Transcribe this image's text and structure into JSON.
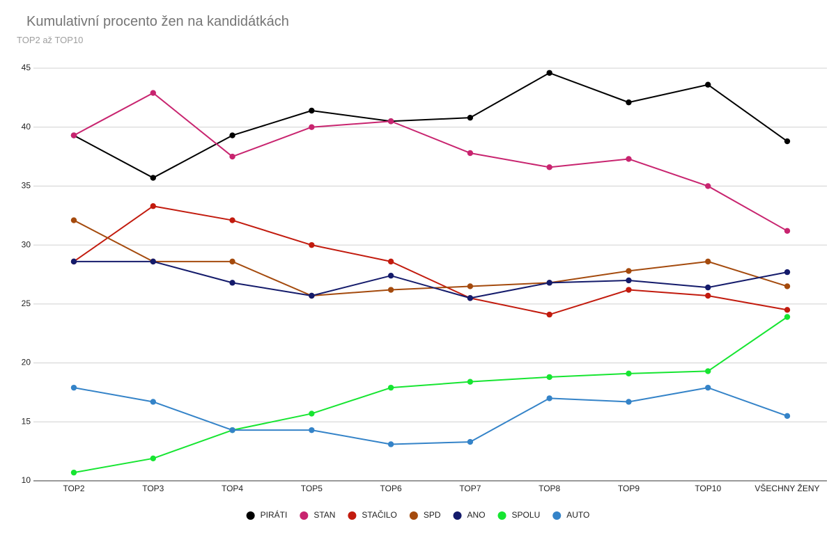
{
  "chart_data": {
    "type": "line",
    "title": "Kumulativní procento žen na kandidátkách",
    "subtitle": "TOP2 až TOP10",
    "categories": [
      "TOP2",
      "TOP3",
      "TOP4",
      "TOP5",
      "TOP6",
      "TOP7",
      "TOP8",
      "TOP9",
      "TOP10",
      "VŠECHNY ŽENY"
    ],
    "ylim": [
      10,
      45
    ],
    "yticks": [
      10,
      15,
      20,
      25,
      30,
      35,
      40,
      45
    ],
    "grid": true,
    "legend_position": "bottom",
    "series": [
      {
        "name": "PIRÁTI",
        "color": "#000000",
        "values": [
          39.3,
          35.7,
          39.3,
          41.4,
          40.5,
          40.8,
          44.6,
          42.1,
          43.6,
          38.8
        ]
      },
      {
        "name": "STAN",
        "color": "#c8246f",
        "values": [
          39.3,
          42.9,
          37.5,
          40.0,
          40.5,
          37.8,
          36.6,
          37.3,
          35.0,
          31.2
        ]
      },
      {
        "name": "STAČILO",
        "color": "#c21b0e",
        "values": [
          28.6,
          33.3,
          32.1,
          30.0,
          28.6,
          25.5,
          24.1,
          26.2,
          25.7,
          24.5
        ]
      },
      {
        "name": "SPD",
        "color": "#a44a0d",
        "values": [
          32.1,
          28.6,
          28.6,
          25.7,
          26.2,
          26.5,
          26.8,
          27.8,
          28.6,
          26.5
        ]
      },
      {
        "name": "ANO",
        "color": "#141b6b",
        "values": [
          28.6,
          28.6,
          26.8,
          25.7,
          27.4,
          25.5,
          26.8,
          27.0,
          26.4,
          27.7
        ]
      },
      {
        "name": "SPOLU",
        "color": "#16e531",
        "values": [
          10.7,
          11.9,
          14.3,
          15.7,
          17.9,
          18.4,
          18.8,
          19.1,
          19.3,
          23.9
        ]
      },
      {
        "name": "AUTO",
        "color": "#3483c8",
        "values": [
          17.9,
          16.7,
          14.3,
          14.3,
          13.1,
          13.3,
          17.0,
          16.7,
          17.9,
          15.5
        ]
      }
    ]
  }
}
